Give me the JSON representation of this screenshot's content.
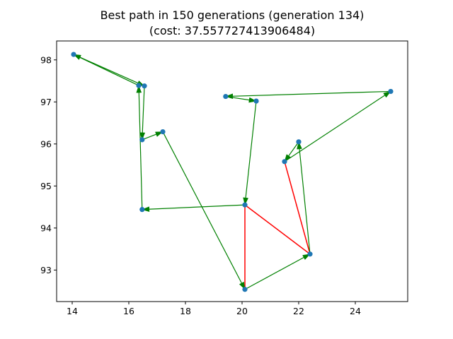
{
  "chart_data": {
    "type": "scatter",
    "title_line1": "Best path in 150 generations (generation 134)",
    "title_line2": "(cost: 37.557727413906484)",
    "xlabel": "",
    "ylabel": "",
    "xlim": [
      13.45,
      25.85
    ],
    "ylim": [
      92.25,
      98.45
    ],
    "xticks": [
      14,
      16,
      18,
      20,
      22,
      24
    ],
    "yticks": [
      93,
      94,
      95,
      96,
      97,
      98
    ],
    "grid": false,
    "legend": "none",
    "colors": {
      "points": "#1f77b4",
      "path": "#008000",
      "highlight": "#ff0000"
    },
    "points": [
      {
        "x": 14.05,
        "y": 98.13
      },
      {
        "x": 16.35,
        "y": 97.39
      },
      {
        "x": 16.55,
        "y": 97.38
      },
      {
        "x": 16.47,
        "y": 96.1
      },
      {
        "x": 17.2,
        "y": 96.29
      },
      {
        "x": 16.47,
        "y": 94.44
      },
      {
        "x": 20.1,
        "y": 94.55
      },
      {
        "x": 20.1,
        "y": 92.54
      },
      {
        "x": 22.4,
        "y": 93.38
      },
      {
        "x": 21.5,
        "y": 95.58
      },
      {
        "x": 22.0,
        "y": 96.05
      },
      {
        "x": 25.25,
        "y": 97.25
      },
      {
        "x": 19.42,
        "y": 97.13
      },
      {
        "x": 20.5,
        "y": 97.02
      }
    ],
    "path_edges": [
      {
        "from": 0,
        "to": 2
      },
      {
        "from": 2,
        "to": 3
      },
      {
        "from": 3,
        "to": 4
      },
      {
        "from": 4,
        "to": 7
      },
      {
        "from": 7,
        "to": 8
      },
      {
        "from": 8,
        "to": 10
      },
      {
        "from": 10,
        "to": 9
      },
      {
        "from": 9,
        "to": 11
      },
      {
        "from": 11,
        "to": 12
      },
      {
        "from": 12,
        "to": 13
      },
      {
        "from": 13,
        "to": 6
      },
      {
        "from": 6,
        "to": 5
      },
      {
        "from": 5,
        "to": 1
      },
      {
        "from": 1,
        "to": 0
      }
    ],
    "highlight_edges": [
      {
        "from": 6,
        "to": 7
      },
      {
        "from": 6,
        "to": 8
      },
      {
        "from": 9,
        "to": 8
      }
    ]
  }
}
